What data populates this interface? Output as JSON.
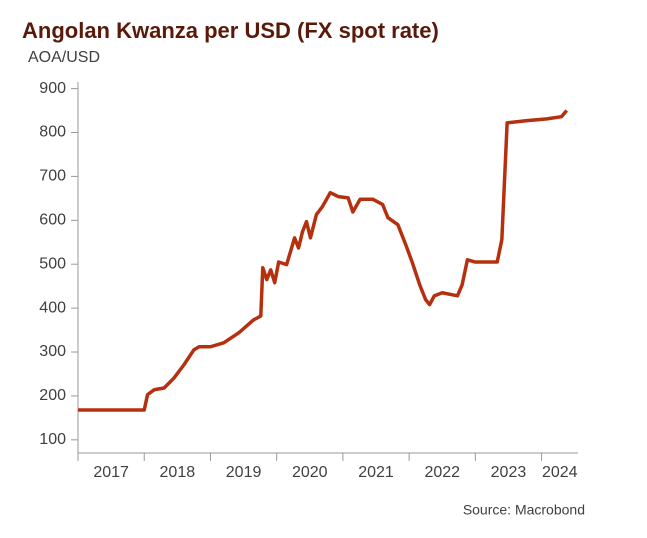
{
  "chart_data": {
    "type": "line",
    "title": "Angolan Kwanza per USD (FX spot rate)",
    "subtitle": "AOA/USD",
    "source": "Source: Macrobond",
    "x": [
      2017.0,
      2018.0,
      2018.05,
      2018.15,
      2018.3,
      2018.45,
      2018.6,
      2018.75,
      2018.83,
      2019.0,
      2019.2,
      2019.43,
      2019.65,
      2019.76,
      2019.79,
      2019.85,
      2019.91,
      2019.97,
      2020.03,
      2020.15,
      2020.27,
      2020.33,
      2020.39,
      2020.45,
      2020.51,
      2020.6,
      2020.69,
      2020.81,
      2020.93,
      2021.08,
      2021.15,
      2021.26,
      2021.45,
      2021.6,
      2021.68,
      2021.83,
      2021.95,
      2022.05,
      2022.16,
      2022.25,
      2022.31,
      2022.38,
      2022.5,
      2022.73,
      2022.8,
      2022.88,
      2023.0,
      2023.33,
      2023.4,
      2023.48,
      2023.78,
      2024.08,
      2024.3,
      2024.38
    ],
    "series": [
      {
        "name": "AOA/USD",
        "color": "#b5300f",
        "values": [
          168,
          168,
          203,
          214,
          218,
          241,
          271,
          305,
          312,
          312,
          321,
          344,
          373,
          382,
          492,
          465,
          487,
          458,
          505,
          499,
          560,
          537,
          574,
          597,
          560,
          613,
          631,
          663,
          654,
          651,
          619,
          648,
          648,
          636,
          606,
          590,
          544,
          503,
          453,
          419,
          408,
          428,
          435,
          428,
          453,
          510,
          505,
          505,
          556,
          822,
          827,
          831,
          836,
          850
        ]
      }
    ],
    "xlim": [
      2017,
      2024.55
    ],
    "xticks": [
      2017,
      2018,
      2019,
      2020,
      2021,
      2022,
      2023,
      2024
    ],
    "ylim": [
      70,
      915
    ],
    "yticks": [
      100,
      200,
      300,
      400,
      500,
      600,
      700,
      800,
      900
    ],
    "grid": false
  }
}
